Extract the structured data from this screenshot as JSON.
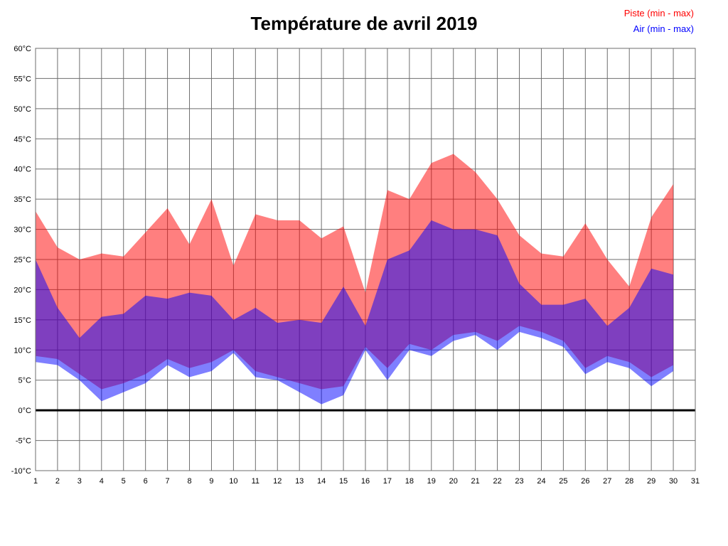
{
  "title": "Température de avril 2019",
  "legend": {
    "piste": {
      "label": "Piste (min - max)",
      "color": "#ff0000"
    },
    "air": {
      "label": "Air (min - max)",
      "color": "#0000ff"
    }
  },
  "chart_data": {
    "type": "area",
    "title": "Température de avril 2019",
    "xlabel": "",
    "ylabel": "",
    "xlim": [
      1,
      31
    ],
    "ylim": [
      -10,
      60
    ],
    "grid": true,
    "grid_color": "#6e6e6e",
    "zero_line_value": 0,
    "zero_line_color": "#000000",
    "legend_position": "top-right",
    "x": [
      1,
      2,
      3,
      4,
      5,
      6,
      7,
      8,
      9,
      10,
      11,
      12,
      13,
      14,
      15,
      16,
      17,
      18,
      19,
      20,
      21,
      22,
      23,
      24,
      25,
      26,
      27,
      28,
      29,
      30
    ],
    "x_ticks": [
      {
        "value": 1,
        "label": "1"
      },
      {
        "value": 2,
        "label": "2"
      },
      {
        "value": 3,
        "label": "3"
      },
      {
        "value": 4,
        "label": "4"
      },
      {
        "value": 5,
        "label": "5"
      },
      {
        "value": 6,
        "label": "6"
      },
      {
        "value": 7,
        "label": "7"
      },
      {
        "value": 8,
        "label": "8"
      },
      {
        "value": 9,
        "label": "9"
      },
      {
        "value": 10,
        "label": "10"
      },
      {
        "value": 11,
        "label": "11"
      },
      {
        "value": 12,
        "label": "12"
      },
      {
        "value": 13,
        "label": "13"
      },
      {
        "value": 14,
        "label": "14"
      },
      {
        "value": 15,
        "label": "15"
      },
      {
        "value": 16,
        "label": "16"
      },
      {
        "value": 17,
        "label": "17"
      },
      {
        "value": 18,
        "label": "18"
      },
      {
        "value": 19,
        "label": "19"
      },
      {
        "value": 20,
        "label": "20"
      },
      {
        "value": 21,
        "label": "21"
      },
      {
        "value": 22,
        "label": "22"
      },
      {
        "value": 23,
        "label": "23"
      },
      {
        "value": 24,
        "label": "24"
      },
      {
        "value": 25,
        "label": "25"
      },
      {
        "value": 26,
        "label": "26"
      },
      {
        "value": 27,
        "label": "27"
      },
      {
        "value": 28,
        "label": "28"
      },
      {
        "value": 29,
        "label": "29"
      },
      {
        "value": 30,
        "label": "30"
      },
      {
        "value": 31,
        "label": "31"
      }
    ],
    "y_ticks": [
      {
        "value": 60,
        "label": "60°C"
      },
      {
        "value": 55,
        "label": "55°C"
      },
      {
        "value": 50,
        "label": "50°C"
      },
      {
        "value": 45,
        "label": "45°C"
      },
      {
        "value": 40,
        "label": "40°C"
      },
      {
        "value": 35,
        "label": "35°C"
      },
      {
        "value": 30,
        "label": "30°C"
      },
      {
        "value": 25,
        "label": "25°C"
      },
      {
        "value": 20,
        "label": "20°C"
      },
      {
        "value": 15,
        "label": "15°C"
      },
      {
        "value": 10,
        "label": "10°C"
      },
      {
        "value": 5,
        "label": "5°C"
      },
      {
        "value": 0,
        "label": "0°C"
      },
      {
        "value": -5,
        "label": "-5°C"
      },
      {
        "value": -10,
        "label": "-10°C"
      }
    ],
    "bands": [
      {
        "name": "piste-band",
        "legend": "Piste (min - max)",
        "fill": "rgba(255,0,0,0.5)",
        "max": [
          33,
          27,
          25,
          26,
          25.5,
          29.5,
          33.5,
          27.5,
          35,
          24,
          32.5,
          31.5,
          31.5,
          28.5,
          30.5,
          19.5,
          36.5,
          35,
          41,
          42.5,
          39.5,
          35,
          29,
          26,
          25.5,
          31,
          25,
          20.5,
          32,
          37.5
        ],
        "min": [
          9,
          8.5,
          6,
          3.5,
          4.5,
          6,
          8.5,
          7,
          8,
          10,
          6.5,
          5.5,
          4.5,
          3.5,
          4,
          10.5,
          7,
          11,
          10,
          12.5,
          13,
          11.5,
          14,
          13,
          11.5,
          7,
          9,
          8,
          5.5,
          7.5
        ]
      },
      {
        "name": "air-band",
        "legend": "Air (min - max)",
        "fill": "rgba(0,0,255,0.5)",
        "max": [
          25,
          17,
          12,
          15.5,
          16,
          19,
          18.5,
          19.5,
          19,
          15,
          17,
          14.5,
          15,
          14.5,
          20.5,
          14,
          25,
          26.5,
          31.5,
          30,
          30,
          29,
          21,
          17.5,
          17.5,
          18.5,
          14,
          17,
          23.5,
          22.5
        ],
        "min": [
          8,
          7.5,
          5,
          1.5,
          3,
          4.5,
          7.5,
          5.5,
          6.5,
          9.5,
          5.5,
          5,
          3,
          1,
          2.5,
          10,
          5,
          10,
          9,
          11.5,
          12.5,
          10,
          13,
          12,
          10.5,
          6,
          8,
          7,
          4,
          6.5
        ]
      }
    ]
  }
}
